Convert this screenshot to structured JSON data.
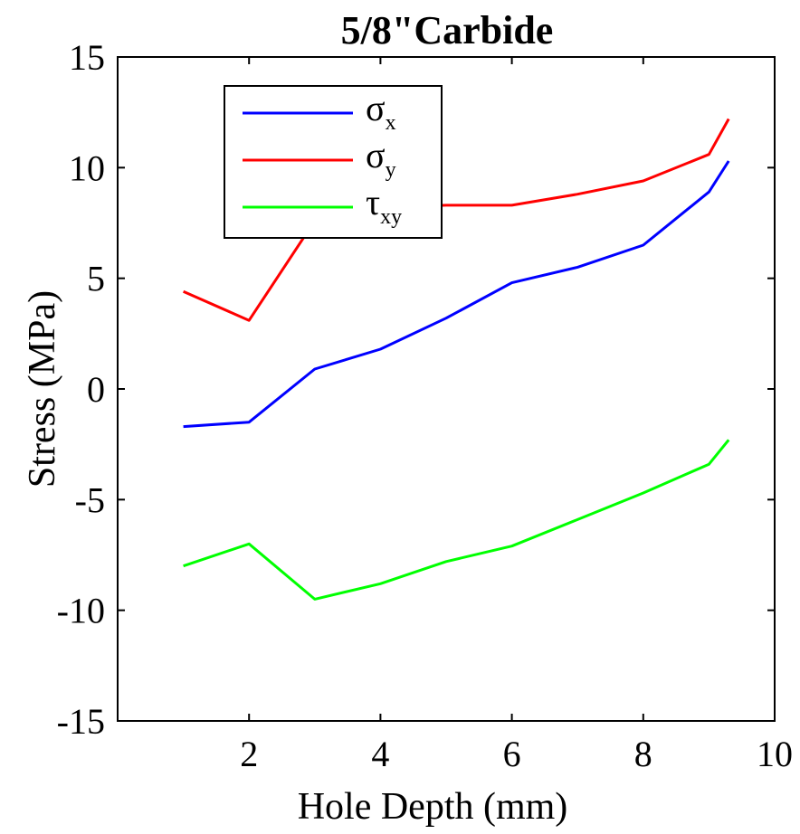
{
  "chart_data": {
    "type": "line",
    "title": "5/8\"Carbide",
    "xlabel": "Hole Depth (mm)",
    "ylabel": "Stress (MPa)",
    "xlim": [
      0,
      10
    ],
    "ylim": [
      -15,
      15
    ],
    "xticks": [
      2,
      4,
      6,
      8,
      10
    ],
    "xtick_labels": [
      "2",
      "4",
      "6",
      "8",
      "10"
    ],
    "yticks": [
      15,
      10,
      5,
      0,
      -5,
      -10,
      -15
    ],
    "ytick_labels": [
      "15",
      "10",
      "5",
      "0",
      "-5",
      "-10",
      "-15"
    ],
    "grid": false,
    "legend_position": "top-left",
    "x": [
      1.0,
      2.0,
      3.0,
      4.0,
      5.0,
      6.0,
      7.0,
      8.0,
      9.0,
      9.3
    ],
    "series": [
      {
        "name": "σ",
        "subscript": "x",
        "color": "#0000ff",
        "values": [
          -1.7,
          -1.5,
          0.9,
          1.8,
          3.2,
          4.8,
          5.5,
          6.5,
          8.9,
          10.3
        ]
      },
      {
        "name": "σ",
        "subscript": "y",
        "color": "#ff0000",
        "values": [
          4.4,
          3.1,
          7.6,
          8.2,
          8.3,
          8.3,
          8.8,
          9.4,
          10.6,
          12.2
        ]
      },
      {
        "name": "τ",
        "subscript": "xy",
        "color": "#00ff00",
        "values": [
          -8.0,
          -7.0,
          -9.5,
          -8.8,
          -7.8,
          -7.1,
          -5.9,
          -4.7,
          -3.4,
          -2.3
        ]
      }
    ]
  }
}
